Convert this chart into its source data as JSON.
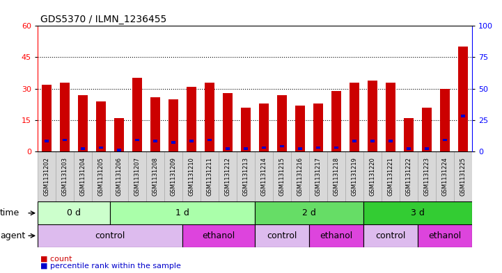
{
  "title": "GDS5370 / ILMN_1236455",
  "samples": [
    "GSM1131202",
    "GSM1131203",
    "GSM1131204",
    "GSM1131205",
    "GSM1131206",
    "GSM1131207",
    "GSM1131208",
    "GSM1131209",
    "GSM1131210",
    "GSM1131211",
    "GSM1131212",
    "GSM1131213",
    "GSM1131214",
    "GSM1131215",
    "GSM1131216",
    "GSM1131217",
    "GSM1131218",
    "GSM1131219",
    "GSM1131220",
    "GSM1131221",
    "GSM1131222",
    "GSM1131223",
    "GSM1131224",
    "GSM1131225"
  ],
  "counts": [
    32,
    33,
    27,
    24,
    16,
    35,
    26,
    25,
    31,
    33,
    28,
    21,
    23,
    27,
    22,
    23,
    29,
    33,
    34,
    33,
    16,
    21,
    30,
    50
  ],
  "percentiles": [
    8,
    9,
    2,
    3,
    1,
    9,
    8,
    7,
    8,
    9,
    2,
    2,
    3,
    4,
    2,
    3,
    3,
    8,
    8,
    8,
    2,
    2,
    9,
    28
  ],
  "bar_color": "#cc0000",
  "percentile_color": "#0000cc",
  "ylim_left": [
    0,
    60
  ],
  "ylim_right": [
    0,
    100
  ],
  "yticks_left": [
    0,
    15,
    30,
    45,
    60
  ],
  "yticks_right": [
    0,
    25,
    50,
    75,
    100
  ],
  "grid_ticks": [
    15,
    30,
    45
  ],
  "time_groups": [
    {
      "label": "0 d",
      "start": 0,
      "end": 4,
      "color": "#ccffcc"
    },
    {
      "label": "1 d",
      "start": 4,
      "end": 12,
      "color": "#aaffaa"
    },
    {
      "label": "2 d",
      "start": 12,
      "end": 18,
      "color": "#66dd66"
    },
    {
      "label": "3 d",
      "start": 18,
      "end": 24,
      "color": "#33cc33"
    }
  ],
  "agent_groups": [
    {
      "label": "control",
      "start": 0,
      "end": 8,
      "color": "#ddbbee"
    },
    {
      "label": "ethanol",
      "start": 8,
      "end": 12,
      "color": "#dd44dd"
    },
    {
      "label": "control",
      "start": 12,
      "end": 15,
      "color": "#ddbbee"
    },
    {
      "label": "ethanol",
      "start": 15,
      "end": 18,
      "color": "#dd44dd"
    },
    {
      "label": "control",
      "start": 18,
      "end": 21,
      "color": "#ddbbee"
    },
    {
      "label": "ethanol",
      "start": 21,
      "end": 24,
      "color": "#dd44dd"
    }
  ],
  "legend_items": [
    {
      "label": "count",
      "color": "#cc0000"
    },
    {
      "label": "percentile rank within the sample",
      "color": "#0000cc"
    }
  ],
  "bar_width": 0.55,
  "bg_color": "#ffffff",
  "tick_fontsize": 8,
  "title_fontsize": 10,
  "sample_fontsize": 6,
  "row_fontsize": 9
}
